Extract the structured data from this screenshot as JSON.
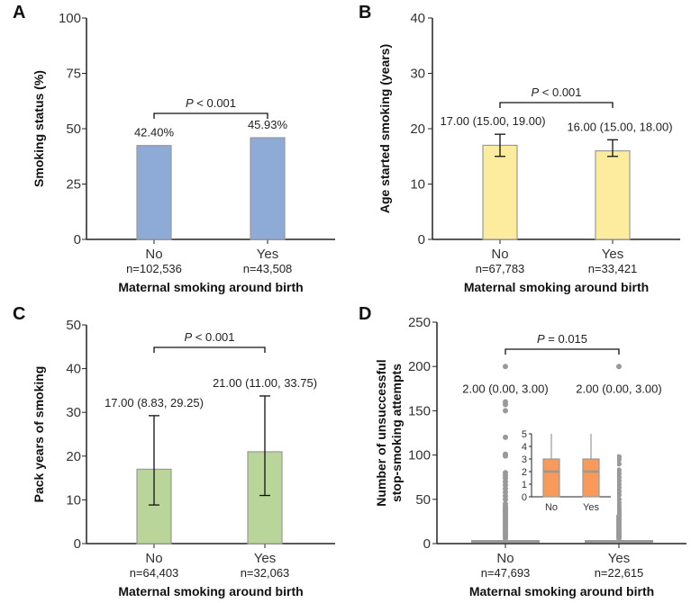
{
  "chart_data": [
    {
      "panel": "A",
      "type": "bar",
      "ylabel": "Smoking status (%)",
      "xlabel": "Maternal smoking around birth",
      "ylim": [
        0,
        100
      ],
      "yticks": [
        0,
        25,
        50,
        75,
        100
      ],
      "categories": [
        "No",
        "Yes"
      ],
      "n": [
        "n=102,536",
        "n=43,508"
      ],
      "values": [
        42.4,
        45.93
      ],
      "value_labels": [
        "42.40%",
        "45.93%"
      ],
      "pvalue": "P < 0.001",
      "color": "#8eaad6"
    },
    {
      "panel": "B",
      "type": "bar",
      "ylabel": "Age started smoking (years)",
      "xlabel": "Maternal smoking around birth",
      "ylim": [
        0,
        40
      ],
      "yticks": [
        0,
        10,
        20,
        30,
        40
      ],
      "categories": [
        "No",
        "Yes"
      ],
      "n": [
        "n=67,783",
        "n=33,421"
      ],
      "values": [
        17,
        16
      ],
      "errors": [
        [
          15,
          19
        ],
        [
          15,
          18
        ]
      ],
      "value_labels": [
        "17.00 (15.00, 19.00)",
        "16.00 (15.00, 18.00)"
      ],
      "pvalue": "P < 0.001",
      "color": "#fdeb9e"
    },
    {
      "panel": "C",
      "type": "bar",
      "ylabel": "Pack years of smoking",
      "xlabel": "Maternal smoking around birth",
      "ylim": [
        0,
        50
      ],
      "yticks": [
        0,
        10,
        20,
        30,
        40,
        50
      ],
      "categories": [
        "No",
        "Yes"
      ],
      "n": [
        "n=64,403",
        "n=32,063"
      ],
      "values": [
        17,
        21
      ],
      "errors": [
        [
          8.83,
          29.25
        ],
        [
          11,
          33.75
        ]
      ],
      "value_labels": [
        "17.00 (8.83, 29.25)",
        "21.00 (11.00, 33.75)"
      ],
      "pvalue": "P < 0.001",
      "color": "#b9d59a"
    },
    {
      "panel": "D",
      "type": "box",
      "ylabel": "Number of unsuccessful stop-smoking attempts",
      "ylabel_lines": [
        "Number of unsuccessful",
        "stop-smoking attempts"
      ],
      "xlabel": "Maternal smoking around birth",
      "ylim": [
        0,
        250
      ],
      "yticks": [
        0,
        50,
        100,
        150,
        200,
        250
      ],
      "categories": [
        "No",
        "Yes"
      ],
      "n": [
        "n=47,693",
        "n=22,615"
      ],
      "median": [
        2,
        2
      ],
      "q1": [
        0,
        0
      ],
      "q3": [
        3,
        3
      ],
      "value_labels": [
        "2.00 (0.00, 3.00)",
        "2.00 (0.00, 3.00)"
      ],
      "pvalue": "P = 0.015",
      "outliers": [
        [
          200,
          160,
          157,
          150,
          120,
          101,
          99,
          80,
          77,
          74,
          70,
          66,
          62,
          58,
          54,
          50,
          45,
          42,
          40,
          38,
          36,
          34,
          32,
          30,
          28,
          26,
          24,
          22,
          20,
          18,
          16,
          14,
          12,
          10,
          8,
          6
        ],
        [
          200,
          98,
          95,
          90,
          83,
          79,
          75,
          71,
          67,
          63,
          59,
          55,
          50,
          46,
          43,
          40,
          38,
          36,
          34,
          32,
          30,
          28,
          26,
          24,
          22,
          20,
          18,
          16,
          14,
          12,
          10,
          8,
          6
        ]
      ],
      "color": "#f79a5a",
      "inset": {
        "ylim": [
          0,
          5
        ],
        "yticks": [
          0,
          1,
          2,
          3,
          4,
          5
        ],
        "categories": [
          "No",
          "Yes"
        ],
        "whisker_top": [
          5,
          5
        ]
      }
    }
  ]
}
